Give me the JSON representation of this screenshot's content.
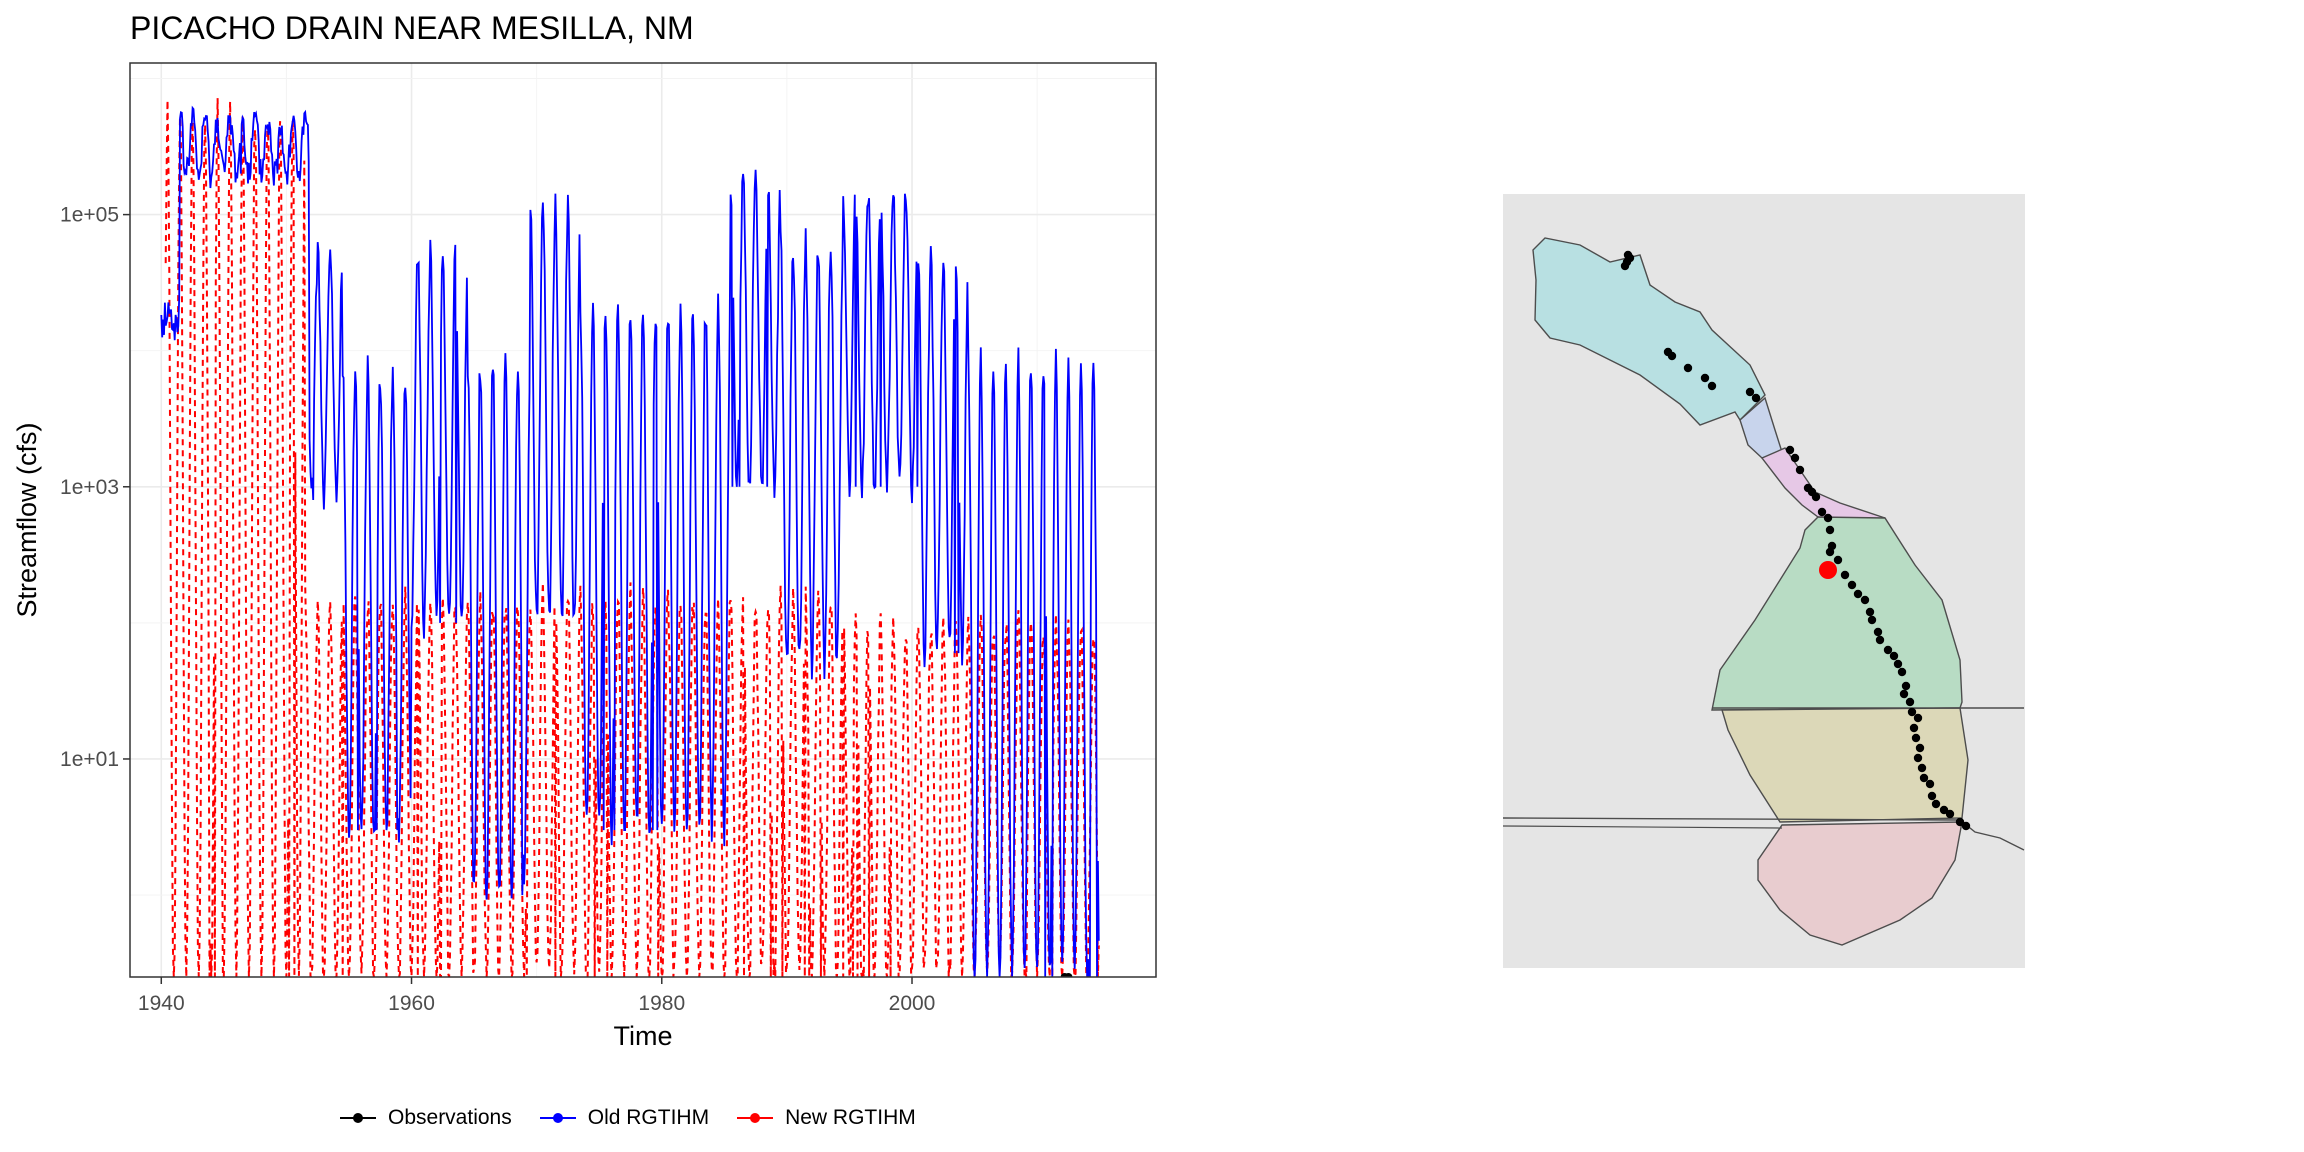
{
  "chart_data": [
    {
      "type": "line",
      "title": "PICACHO DRAIN NEAR MESILLA, NM",
      "xlabel": "Time",
      "ylabel": "Streamflow (cfs)",
      "x_scale": "time (years)",
      "y_scale": "log10",
      "xlim": [
        1937.5,
        2019.5
      ],
      "ylim": [
        0.25,
        1300000
      ],
      "x_ticks": [
        1940,
        1960,
        1980,
        2000
      ],
      "x_tick_labels": [
        "1940",
        "1960",
        "1980",
        "2000"
      ],
      "y_ticks": [
        10,
        1000,
        100000
      ],
      "y_tick_labels": [
        "1e+01",
        "1e+03",
        "1e+05"
      ],
      "grid": true,
      "legend_position": "bottom",
      "series": [
        {
          "name": "Observations",
          "color": "#000000",
          "style": "solid-with-points",
          "x": [
            2012.2,
            2012.5
          ],
          "y": [
            0.25,
            0.25
          ]
        },
        {
          "name": "Old RGTIHM",
          "color": "#0000ff",
          "style": "solid",
          "segments": [
            {
              "start": 1940,
              "end": 1941.5,
              "high": 20000,
              "low": 15000
            },
            {
              "start": 1941.5,
              "end": 1951.8,
              "high": 500000,
              "low": 200000
            },
            {
              "start": 1951.8,
              "end": 1954.5,
              "high": 50000,
              "low": 800
            },
            {
              "start": 1954.5,
              "end": 1960,
              "high": 7000,
              "low": 3
            },
            {
              "start": 1960,
              "end": 1964.5,
              "high": 50000,
              "low": 100
            },
            {
              "start": 1964.5,
              "end": 1969.5,
              "high": 8000,
              "low": 1
            },
            {
              "start": 1969.5,
              "end": 1973.5,
              "high": 110000,
              "low": 100
            },
            {
              "start": 1973.5,
              "end": 1985.5,
              "high": 20000,
              "low": 3
            },
            {
              "start": 1985.5,
              "end": 1989.5,
              "high": 170000,
              "low": 1000
            },
            {
              "start": 1989.5,
              "end": 1994.5,
              "high": 60000,
              "low": 50
            },
            {
              "start": 1994.5,
              "end": 2000.5,
              "high": 150000,
              "low": 1000
            },
            {
              "start": 2000.5,
              "end": 2004.5,
              "high": 50000,
              "low": 60
            },
            {
              "start": 2004.5,
              "end": 2015,
              "high": 8000,
              "low": 0.25
            }
          ]
        },
        {
          "name": "New RGTIHM",
          "color": "#ff0000",
          "style": "dashed",
          "segments": [
            {
              "start": 1940.3,
              "end": 1951.5,
              "high": 550000,
              "low": 0.25
            },
            {
              "start": 1951.5,
              "end": 1955,
              "high": 150,
              "low": 0.25
            },
            {
              "start": 1955,
              "end": 1985,
              "high": 150,
              "low": 0.25
            },
            {
              "start": 1985,
              "end": 1995,
              "high": 150,
              "low": 0.25
            },
            {
              "start": 1995,
              "end": 2015,
              "high": 100,
              "low": 0.25
            }
          ]
        }
      ]
    },
    {
      "type": "map",
      "background": "#e5e5e5",
      "regions": [
        {
          "color": "#b8e0e2"
        },
        {
          "color": "#c8d4ec"
        },
        {
          "color": "#e6c8e6"
        },
        {
          "color": "#b8dcc4"
        },
        {
          "color": "#dcd8b8"
        },
        {
          "color": "#e8cccf"
        }
      ],
      "highlight_color": "#ff0000",
      "points_color": "#000000"
    }
  ],
  "legend": {
    "items": [
      {
        "label": "Observations",
        "color": "#000000"
      },
      {
        "label": "Old RGTIHM",
        "color": "#0000ff"
      },
      {
        "label": "New RGTIHM",
        "color": "#ff0000"
      }
    ]
  }
}
